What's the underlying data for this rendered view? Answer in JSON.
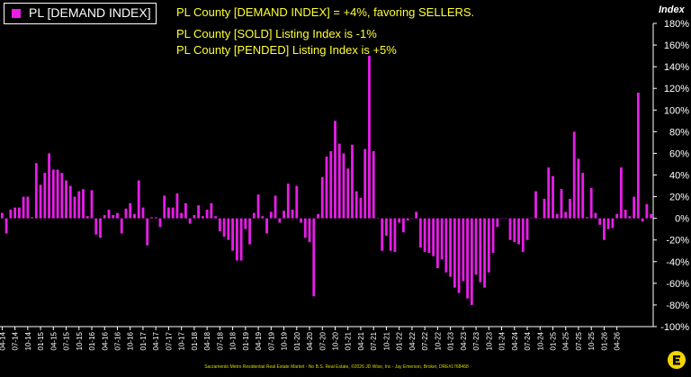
{
  "legend": {
    "label": "PL [DEMAND INDEX]"
  },
  "headlines": [
    "PL County [DEMAND INDEX] = +4%, favoring SELLERS.",
    "PL County [SOLD] Listing Index is -1%",
    "PL County [PENDED] Listing Index is +5%"
  ],
  "footer": "Sacramento Metro Residential Real Estate Market - No B.S. Real Estate, ©2026 JD Wise, Inc - Jay Emerson, Broker, DRE#1768468",
  "colors": {
    "bar": "#e61ee6",
    "text_highlight": "#ffff33",
    "axis": "#ffffff",
    "background": "#000000"
  },
  "logo_icon": "broker-logo-icon",
  "chart_data": {
    "type": "bar",
    "ylabel": "Index",
    "ylim": [
      -100,
      180
    ],
    "ytick_step": 20,
    "grid": false,
    "legend_position": "top-left",
    "series": [
      {
        "name": "PL [DEMAND INDEX]",
        "values": [
          5,
          -14,
          8,
          10,
          10,
          20,
          20,
          1,
          51,
          31,
          42,
          60,
          45,
          45,
          42,
          35,
          30,
          20,
          25,
          27,
          2,
          26,
          -15,
          -18,
          3,
          8,
          3,
          5,
          -14,
          9,
          14,
          4,
          35,
          10,
          -25,
          1,
          1,
          -8,
          21,
          10,
          10,
          23,
          5,
          14,
          -5,
          3,
          12,
          2,
          8,
          14,
          2,
          -12,
          -17,
          -20,
          -30,
          -39,
          -39,
          -10,
          -24,
          5,
          22,
          2,
          -14,
          6,
          21,
          -4,
          7,
          32,
          8,
          30,
          -4,
          -18,
          -22,
          -72,
          4,
          38,
          57,
          62,
          90,
          69,
          60,
          46,
          68,
          25,
          19,
          64,
          150,
          62,
          0,
          -30,
          -16,
          -30,
          -31,
          -4,
          -13,
          -2,
          0,
          6,
          -27,
          -31,
          -32,
          -35,
          -46,
          -38,
          -50,
          -54,
          -64,
          -69,
          -58,
          -74,
          -80,
          -52,
          -59,
          -64,
          -50,
          -32,
          -8,
          0,
          0,
          -20,
          -22,
          -24,
          -31,
          -20,
          0,
          25,
          0,
          18,
          47,
          39,
          4,
          27,
          6,
          18,
          80,
          55,
          42,
          1,
          28,
          5,
          -6,
          -20,
          -10,
          -9,
          4,
          47,
          8,
          2,
          20,
          116,
          -3,
          13,
          4
        ]
      }
    ],
    "x_tick_labels": [
      "04-14",
      "07-14",
      "10-14",
      "01-15",
      "04-15",
      "07-15",
      "10-15",
      "01-16",
      "04-16",
      "07-16",
      "10-16",
      "01-17",
      "04-17",
      "07-17",
      "10-17",
      "01-18",
      "04-18",
      "07-18",
      "10-18",
      "01-19",
      "04-19",
      "07-19",
      "10-19",
      "01-20",
      "04-20",
      "07-20",
      "10-20",
      "01-21",
      "04-21",
      "07-21",
      "10-21",
      "01-22",
      "04-22",
      "07-22",
      "10-22",
      "01-23",
      "04-23",
      "07-23",
      "10-23",
      "01-24",
      "04-24",
      "07-24",
      "10-24",
      "01-25",
      "04-25",
      "07-25",
      "10-25",
      "01-26",
      "04-26"
    ],
    "y_tick_labels": [
      "180%",
      "160%",
      "140%",
      "120%",
      "100%",
      "80%",
      "60%",
      "40%",
      "20%",
      "0%",
      "-20%",
      "-40%",
      "-60%",
      "-80%",
      "-100%"
    ]
  }
}
